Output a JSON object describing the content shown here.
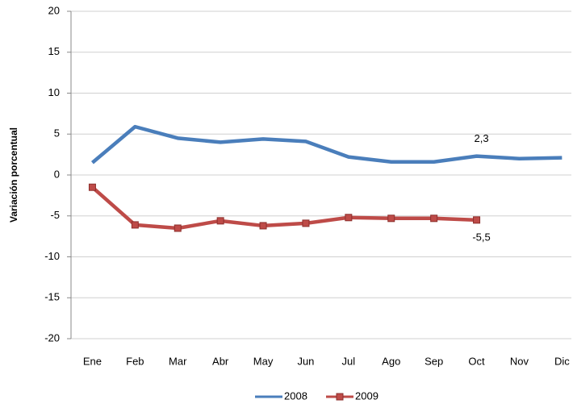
{
  "chart_data": {
    "type": "line",
    "y_label": "Variación porcentual",
    "categories": [
      "Ene",
      "Feb",
      "Mar",
      "Abr",
      "May",
      "Jun",
      "Jul",
      "Ago",
      "Sep",
      "Oct",
      "Nov",
      "Dic"
    ],
    "series": [
      {
        "name": "2008",
        "color": "#4a7ebb",
        "marker": "none",
        "values": [
          1.5,
          5.9,
          4.5,
          4.0,
          4.4,
          4.1,
          2.2,
          1.6,
          1.6,
          2.3,
          2.0,
          2.1
        ],
        "value_labels": [
          null,
          null,
          null,
          null,
          null,
          null,
          null,
          null,
          null,
          "2,3",
          null,
          null
        ]
      },
      {
        "name": "2009",
        "color": "#be4b48",
        "marker": "square",
        "values": [
          -1.5,
          -6.1,
          -6.5,
          -5.6,
          -6.2,
          -5.9,
          -5.2,
          -5.3,
          -5.3,
          -5.5,
          null,
          null
        ],
        "value_labels": [
          null,
          null,
          null,
          null,
          null,
          null,
          null,
          null,
          null,
          "-5,5",
          null,
          null
        ]
      }
    ],
    "ylim": [
      -20,
      20
    ],
    "yticks": [
      -20,
      -15,
      -10,
      -5,
      0,
      5,
      10,
      15,
      20
    ],
    "grid": true,
    "legend": "bottom"
  }
}
